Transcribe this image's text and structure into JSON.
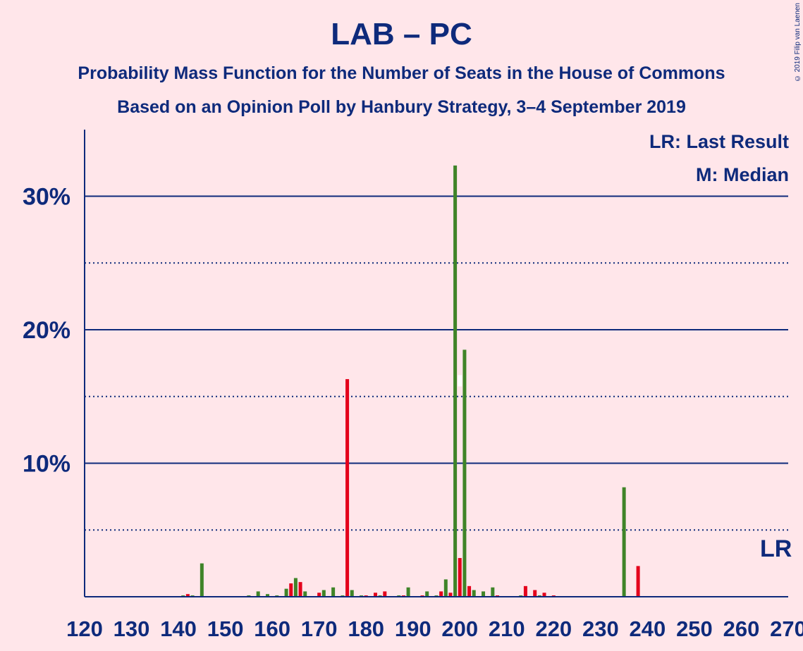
{
  "chart_data": {
    "type": "bar",
    "title": "LAB – PC",
    "subtitle": "Probability Mass Function for the Number of Seats in the House of Commons",
    "subtitle2": "Based on an Opinion Poll by Hanbury Strategy, 3–4 September 2019",
    "copyright": "© 2019 Filip van Laenen",
    "legend": {
      "lr": "LR: Last Result",
      "m": "M: Median",
      "placement": "top-right"
    },
    "xlim": [
      120,
      270
    ],
    "ylim": [
      0,
      35
    ],
    "x_ticks": [
      120,
      130,
      140,
      150,
      160,
      170,
      180,
      190,
      200,
      210,
      220,
      230,
      240,
      250,
      260,
      270
    ],
    "y_ticks_major": [
      10,
      20,
      30
    ],
    "y_tick_labels": [
      "10%",
      "20%",
      "30%"
    ],
    "y_ticks_minor": [
      5,
      15,
      25
    ],
    "last_result": {
      "seat": 268,
      "label": "LR"
    },
    "median": {
      "seat": 200,
      "label": "M"
    },
    "colors": {
      "lab": "#E4001B",
      "pc": "#3F8428",
      "axis": "#0E2A7B",
      "background": "#FFE6EA"
    },
    "series": [
      {
        "name": "LAB",
        "color": "#E4001B",
        "points": [
          [
            142,
            0.2
          ],
          [
            164,
            1.0
          ],
          [
            166,
            1.1
          ],
          [
            170,
            0.3
          ],
          [
            176,
            16.3
          ],
          [
            180,
            0.1
          ],
          [
            182,
            0.3
          ],
          [
            184,
            0.4
          ],
          [
            188,
            0.1
          ],
          [
            192,
            0.1
          ],
          [
            196,
            0.4
          ],
          [
            198,
            0.3
          ],
          [
            200,
            2.9
          ],
          [
            202,
            0.8
          ],
          [
            208,
            0.1
          ],
          [
            214,
            0.8
          ],
          [
            216,
            0.5
          ],
          [
            218,
            0.3
          ],
          [
            220,
            0.1
          ],
          [
            238,
            2.3
          ]
        ]
      },
      {
        "name": "PC",
        "color": "#3F8428",
        "points": [
          [
            141,
            0.1
          ],
          [
            143,
            0.1
          ],
          [
            145,
            2.5
          ],
          [
            155,
            0.1
          ],
          [
            157,
            0.4
          ],
          [
            159,
            0.2
          ],
          [
            161,
            0.1
          ],
          [
            163,
            0.6
          ],
          [
            165,
            1.4
          ],
          [
            167,
            0.4
          ],
          [
            171,
            0.5
          ],
          [
            173,
            0.7
          ],
          [
            175,
            0.1
          ],
          [
            177,
            0.5
          ],
          [
            179,
            0.1
          ],
          [
            183,
            0.1
          ],
          [
            187,
            0.1
          ],
          [
            189,
            0.7
          ],
          [
            193,
            0.4
          ],
          [
            195,
            0.1
          ],
          [
            197,
            1.3
          ],
          [
            199,
            32.3
          ],
          [
            201,
            18.5
          ],
          [
            203,
            0.5
          ],
          [
            205,
            0.4
          ],
          [
            207,
            0.7
          ],
          [
            213,
            0.1
          ],
          [
            217,
            0.1
          ],
          [
            235,
            8.2
          ]
        ]
      }
    ]
  }
}
